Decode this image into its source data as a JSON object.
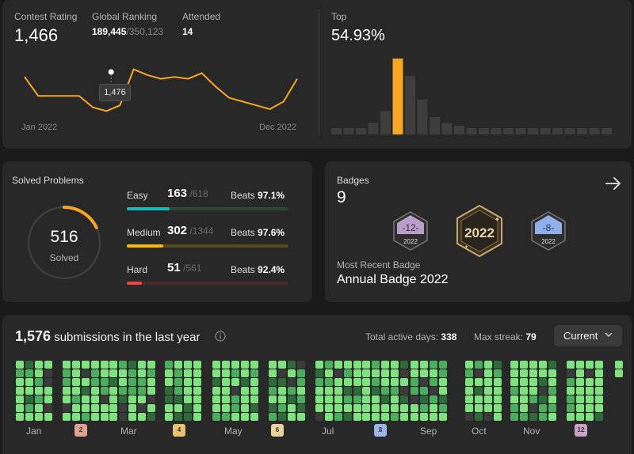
{
  "contest": {
    "rating_label": "Contest Rating",
    "rating_value": "1,466",
    "ranking_label": "Global Ranking",
    "ranking_value": "189,445",
    "ranking_total": "/350,123",
    "attended_label": "Attended",
    "attended_value": "14",
    "tooltip_value": "1,476",
    "start_label": "Jan 2022",
    "end_label": "Dec 2022",
    "rating_series": [
      1510,
      1460,
      1460,
      1460,
      1460,
      1430,
      1420,
      1435,
      1530,
      1515,
      1505,
      1510,
      1505,
      1520,
      1485,
      1455,
      1445,
      1435,
      1425,
      1445,
      1505
    ],
    "highlight_index": 6,
    "line_color": "#f5a623"
  },
  "top": {
    "label": "Top",
    "value": "54.93%",
    "histogram": [
      1,
      1,
      1,
      2,
      4,
      13,
      10,
      6,
      3,
      2,
      1.5,
      1,
      1,
      1,
      1,
      1,
      1,
      1,
      1,
      1,
      1,
      1,
      1
    ],
    "highlight_index": 5,
    "highlight_color": "#f5a623"
  },
  "solved": {
    "title": "Solved Problems",
    "total": "516",
    "total_label": "Solved",
    "ring_fraction": 0.18,
    "rows": [
      {
        "name": "Easy",
        "count": "163",
        "total": "/618",
        "beats_label": "Beats",
        "beats": "97.1%",
        "fraction": 0.264,
        "color": "#2cbb5d",
        "track": "#2a4a35",
        "fill": "#1cbaba"
      },
      {
        "name": "Medium",
        "count": "302",
        "total": "/1344",
        "beats_label": "Beats",
        "beats": "97.6%",
        "fraction": 0.225,
        "color": "#ffb800",
        "track": "#5a4a20",
        "fill": "#ffb800"
      },
      {
        "name": "Hard",
        "count": "51",
        "total": "/561",
        "beats_label": "Beats",
        "beats": "92.4%",
        "fraction": 0.091,
        "color": "#ef4743",
        "track": "#4a2a2a",
        "fill": "#ef4743"
      }
    ]
  },
  "badges": {
    "title": "Badges",
    "count": "9",
    "recent_label": "Most Recent Badge",
    "recent_name": "Annual Badge 2022",
    "items": [
      {
        "icon": "badge-12-2022",
        "num": "12",
        "year": "2022",
        "color": "#b89ec8"
      },
      {
        "icon": "badge-annual-2022",
        "num": "2022",
        "year": "",
        "color": "#c8a96a"
      },
      {
        "icon": "badge-8-2022",
        "num": "8",
        "year": "2022",
        "color": "#8fb0e8"
      }
    ]
  },
  "calendar": {
    "count": "1,576",
    "suffix": "submissions in the last year",
    "active_label": "Total active days:",
    "active_value": "338",
    "streak_label": "Max streak:",
    "streak_value": "79",
    "select_value": "Current",
    "months": [
      "Jan",
      "Mar",
      "May",
      "Jul",
      "Sep",
      "Oct",
      "Nov"
    ],
    "month_badges": [
      "2",
      "4",
      "6",
      "8",
      "12"
    ],
    "colors": {
      "high": "#7ee27e",
      "mid": "#4bae5e",
      "low": "#2f6b3a",
      "none": "#3b3b3b"
    }
  }
}
